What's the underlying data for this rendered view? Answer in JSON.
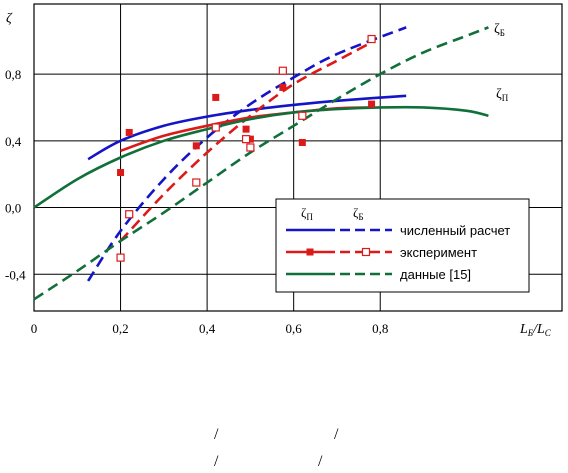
{
  "chart_data": {
    "type": "line",
    "title": "",
    "ylabel": "ζ",
    "xlabel_main": "L",
    "xlabel_sub1": "Б",
    "xlabel_mid": "/L",
    "xlabel_sub2": "С",
    "xlim": [
      0,
      1.22
    ],
    "ylim": [
      -0.62,
      1.22
    ],
    "x_ticks": [
      {
        "v": 0,
        "label": "0"
      },
      {
        "v": 0.2,
        "label": "0,2"
      },
      {
        "v": 0.4,
        "label": "0,4"
      },
      {
        "v": 0.6,
        "label": "0,6"
      },
      {
        "v": 0.8,
        "label": "0,8"
      }
    ],
    "y_ticks": [
      {
        "v": -0.4,
        "label": "-0,4"
      },
      {
        "v": 0.0,
        "label": "0,0"
      },
      {
        "v": 0.4,
        "label": "0,4"
      },
      {
        "v": 0.8,
        "label": "0,8"
      }
    ],
    "grid": true,
    "curve_labels": [
      {
        "base": "ζ",
        "sub": "Б",
        "x": 0.86,
        "y": 1.07
      },
      {
        "base": "ζ",
        "sub": "П",
        "x": 0.86,
        "y": 0.66
      }
    ],
    "series": [
      {
        "name": "численный расчет ζП",
        "color": "#1515c8",
        "dash": "solid",
        "x": [
          0.125,
          0.2,
          0.3,
          0.4,
          0.5,
          0.6,
          0.7,
          0.86
        ],
        "y": [
          0.29,
          0.4,
          0.49,
          0.545,
          0.585,
          0.615,
          0.64,
          0.67
        ]
      },
      {
        "name": "численный расчет ζБ",
        "color": "#1515c8",
        "dash": "dashed",
        "x": [
          0.125,
          0.2,
          0.3,
          0.4,
          0.5,
          0.6,
          0.7,
          0.86
        ],
        "y": [
          -0.44,
          -0.14,
          0.17,
          0.42,
          0.62,
          0.78,
          0.92,
          1.08
        ]
      },
      {
        "name": "эксперимент ζП",
        "color": "#dd1a1a",
        "dash": "solid",
        "x": [
          0.2,
          0.3,
          0.4,
          0.5,
          0.6,
          0.7,
          0.78
        ],
        "y": [
          0.34,
          0.43,
          0.49,
          0.54,
          0.57,
          0.595,
          0.6
        ]
      },
      {
        "name": "эксперимент ζБ",
        "color": "#dd1a1a",
        "dash": "dashed",
        "x": [
          0.2,
          0.3,
          0.4,
          0.5,
          0.6,
          0.7,
          0.78
        ],
        "y": [
          -0.2,
          0.08,
          0.33,
          0.55,
          0.74,
          0.88,
          0.99
        ]
      },
      {
        "name": "данные [15] ζП",
        "color": "#11703a",
        "dash": "solid",
        "x": [
          0,
          0.1,
          0.2,
          0.3,
          0.4,
          0.5,
          0.6,
          0.7,
          0.8,
          0.9,
          1.0,
          1.05
        ],
        "y": [
          0.0,
          0.17,
          0.3,
          0.4,
          0.47,
          0.53,
          0.57,
          0.59,
          0.6,
          0.6,
          0.58,
          0.55
        ]
      },
      {
        "name": "данные [15] ζБ",
        "color": "#11703a",
        "dash": "dashed",
        "x": [
          0,
          0.1,
          0.2,
          0.3,
          0.4,
          0.5,
          0.6,
          0.7,
          0.8,
          0.9,
          1.0,
          1.05
        ],
        "y": [
          -0.55,
          -0.38,
          -0.2,
          -0.03,
          0.15,
          0.33,
          0.49,
          0.65,
          0.8,
          0.93,
          1.03,
          1.08
        ]
      }
    ],
    "points_filled": {
      "color": "#dd1a1a",
      "x": [
        0.2,
        0.22,
        0.375,
        0.42,
        0.49,
        0.5,
        0.575,
        0.62,
        0.78
      ],
      "y": [
        0.21,
        0.45,
        0.37,
        0.66,
        0.47,
        0.41,
        0.72,
        0.39,
        0.62
      ]
    },
    "points_open": {
      "color": "#dd1a1a",
      "x": [
        0.2,
        0.22,
        0.375,
        0.42,
        0.49,
        0.5,
        0.575,
        0.62,
        0.78
      ],
      "y": [
        -0.3,
        -0.04,
        0.15,
        0.48,
        0.41,
        0.36,
        0.82,
        0.55,
        1.01
      ]
    },
    "legend": {
      "header_p_base": "ζ",
      "header_p_sub": "П",
      "header_b_base": "ζ",
      "header_b_sub": "Б",
      "entries": [
        {
          "label": "численный расчет",
          "color": "#1515c8",
          "marker": "none"
        },
        {
          "label": "эксперимент",
          "color": "#dd1a1a",
          "marker": "square"
        },
        {
          "label": "данные [15]",
          "color": "#11703a",
          "marker": "none"
        }
      ]
    }
  },
  "stray_marks": [
    "/",
    "/",
    "/",
    "/"
  ]
}
